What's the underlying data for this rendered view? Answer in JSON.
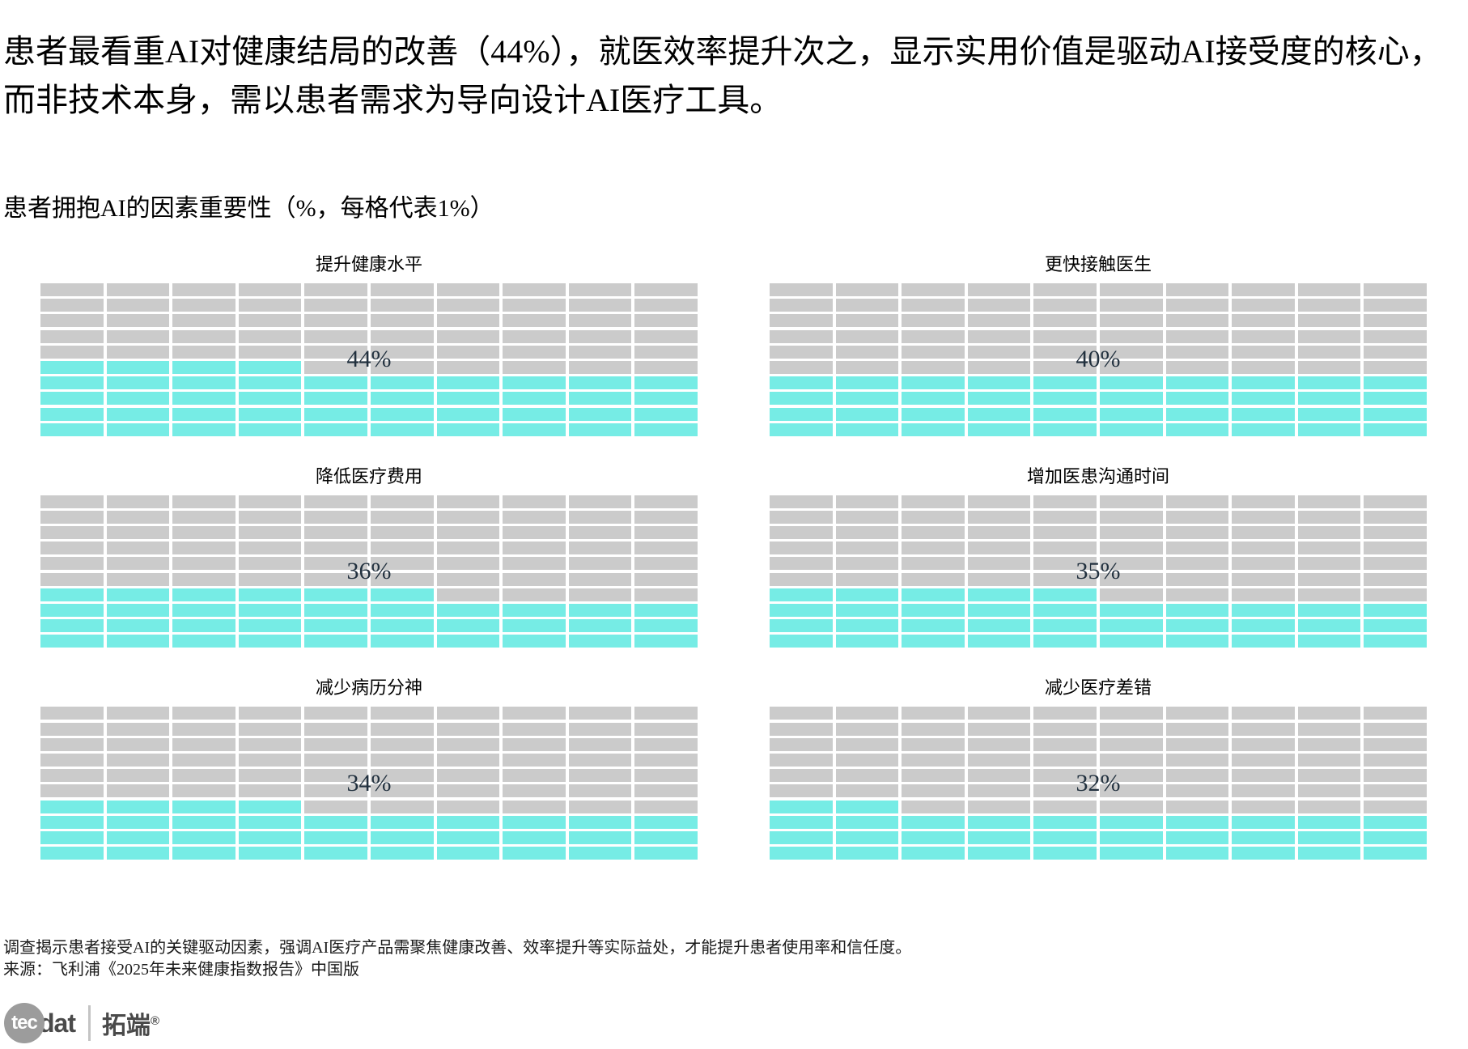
{
  "page": {
    "headline_lines": [
      "患者最看重AI对健康结局的改善（44%），就医效率提升次之，显示实用价值是驱动AI接受度的核心，",
      "而非技术本身，需以患者需求为导向设计AI医疗工具。"
    ],
    "subtitle": "患者拥抱AI的因素重要性（%，每格代表1%）",
    "note": "调查揭示患者接受AI的关键驱动因素，强调AI医疗产品需聚焦健康改善、效率提升等实际益处，才能提升患者使用率和信任度。",
    "source": "来源：飞利浦《2025年未来健康指数报告》中国版"
  },
  "colors": {
    "filled": "#76ECE5",
    "empty": "#CBCBCB",
    "value_label": "#22313F"
  },
  "charts": [
    {
      "title": "提升健康水平",
      "value": 44,
      "label": "44%"
    },
    {
      "title": "更快接触医生",
      "value": 40,
      "label": "40%"
    },
    {
      "title": "降低医疗费用",
      "value": 36,
      "label": "36%"
    },
    {
      "title": "增加医患沟通时间",
      "value": 35,
      "label": "35%"
    },
    {
      "title": "减少病历分神",
      "value": 34,
      "label": "34%"
    },
    {
      "title": "减少医疗差错",
      "value": 32,
      "label": "32%"
    }
  ],
  "chart_data": {
    "type": "waffle",
    "title": "患者拥抱AI的因素重要性（%，每格代表1%）",
    "unit": "%",
    "cell_represents_percent": 1,
    "grid": {
      "rows": 10,
      "cols": 10,
      "fill_direction": "bottom-up, left-to-right"
    },
    "layout": "2 columns x 3 rows, row-major order",
    "categories": [
      "提升健康水平",
      "更快接触医生",
      "降低医疗费用",
      "增加医患沟通时间",
      "减少病历分神",
      "减少医疗差错"
    ],
    "values": [
      44,
      40,
      36,
      35,
      34,
      32
    ],
    "filled_color": "#76ECE5",
    "empty_color": "#CBCBCB"
  },
  "logo": {
    "circle_text": "tec",
    "suffix": "dat",
    "brand_cn": "拓端",
    "registered": "®"
  }
}
